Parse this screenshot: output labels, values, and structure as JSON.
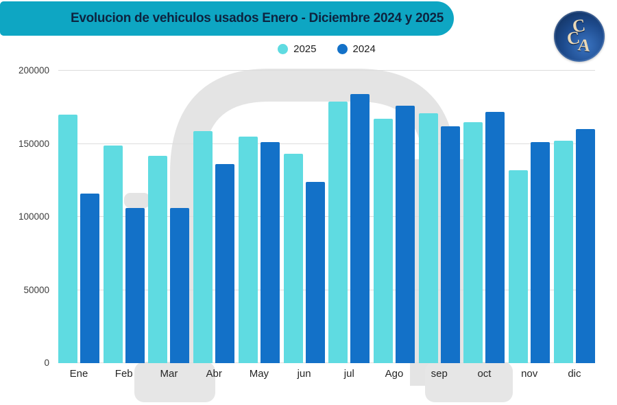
{
  "header": {
    "title": "Evolucion de vehiculos usados Enero - Diciembre 2024 y 2025"
  },
  "logo": {
    "letters": [
      "C",
      "C",
      "A"
    ]
  },
  "colors": {
    "banner": "#0ea6c3",
    "title_text": "#0d2440",
    "bar_2025": "#5fdbe1",
    "bar_2024": "#1371c8",
    "watermark": "#e4e4e4",
    "gridline": "#dcdcdc",
    "axis_text": "#3c3c3c"
  },
  "chart_data": {
    "type": "bar",
    "title": "Evolucion de vehiculos usados Enero - Diciembre 2024 y 2025",
    "xlabel": "",
    "ylabel": "",
    "categories": [
      "Ene",
      "Feb",
      "Mar",
      "Abr",
      "May",
      "jun",
      "jul",
      "Ago",
      "sep",
      "oct",
      "nov",
      "dic"
    ],
    "series": [
      {
        "name": "2025",
        "color": "#5fdbe1",
        "values": [
          170000,
          149000,
          142000,
          158500,
          155000,
          143000,
          179000,
          167000,
          171000,
          165000,
          132000,
          152000
        ]
      },
      {
        "name": "2024",
        "color": "#1371c8",
        "values": [
          116000,
          106000,
          106000,
          136000,
          151000,
          124000,
          184000,
          176000,
          162000,
          172000,
          151000,
          160000
        ]
      }
    ],
    "ylim": [
      0,
      200000
    ],
    "yticks": [
      0,
      50000,
      100000,
      150000,
      200000
    ],
    "grid": true,
    "legend_position": "top"
  }
}
